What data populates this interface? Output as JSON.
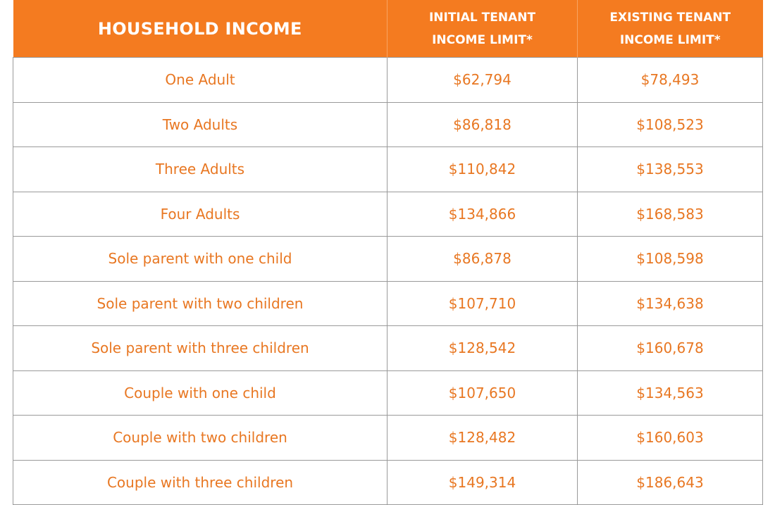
{
  "table": {
    "header": {
      "household": "HOUSEHOLD INCOME",
      "initial": [
        "INITIAL TENANT",
        "INCOME LIMIT*"
      ],
      "existing": [
        "EXISTING TENANT",
        "INCOME LIMIT*"
      ]
    },
    "rows": [
      [
        "One Adult",
        "$62,794",
        "$78,493"
      ],
      [
        "Two Adults",
        "$86,818",
        "$108,523"
      ],
      [
        "Three Adults",
        "$110,842",
        "$138,553"
      ],
      [
        "Four Adults",
        "$134,866",
        "$168,583"
      ],
      [
        "Sole parent with one child",
        "$86,878",
        "$108,598"
      ],
      [
        "Sole parent with two children",
        "$107,710",
        "$134,638"
      ],
      [
        "Sole parent with three children",
        "$128,542",
        "$160,678"
      ],
      [
        "Couple with one child",
        "$107,650",
        "$134,563"
      ],
      [
        "Couple with two children",
        "$128,482",
        "$160,603"
      ],
      [
        "Couple with three children",
        "$149,314",
        "$186,643"
      ]
    ]
  }
}
